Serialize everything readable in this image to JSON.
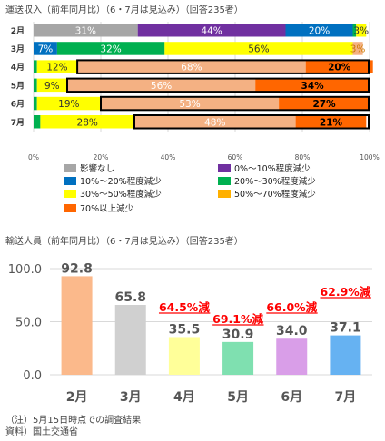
{
  "titles": {
    "top": "運送収入（前年同月比）（6・7月は見込み）（回答235者）",
    "bottom": "輸送人員（前年同月比）（6・7月は見込み）（回答235者）"
  },
  "notes": [
    "（注）5月15日時点での調査結果",
    "資料）国土交通省"
  ],
  "chart_data": [
    {
      "type": "bar",
      "orientation": "horizontal-stacked-100",
      "categories": [
        "2月",
        "3月",
        "4月",
        "5月",
        "6月",
        "7月"
      ],
      "series": [
        {
          "name": "影響なし",
          "color": "#a6a6a6",
          "values": [
            31,
            0,
            0,
            0,
            0,
            0
          ]
        },
        {
          "name": "0%～10%程度減少",
          "color": "#7030a0",
          "values": [
            44,
            0,
            0,
            0,
            0,
            0
          ]
        },
        {
          "name": "10%～20%程度減少",
          "color": "#0070c0",
          "values": [
            20,
            7,
            0,
            0,
            0,
            0
          ]
        },
        {
          "name": "20%～30%程度減少",
          "color": "#00b050",
          "values": [
            1,
            32,
            1,
            1,
            1,
            2
          ]
        },
        {
          "name": "30%～50%程度減少",
          "color": "#ffff00",
          "values": [
            3,
            56,
            12,
            9,
            19,
            28
          ]
        },
        {
          "name": "50%～70%程度減少",
          "color": "#f4b183",
          "values": [
            0,
            3,
            68,
            56,
            53,
            48
          ]
        },
        {
          "name": "70%以上減少",
          "color": "#ff6600",
          "values": [
            0,
            0,
            20,
            34,
            27,
            21
          ]
        }
      ],
      "labels": [
        [
          {
            "s": 0,
            "t": "31%",
            "c": "#ffffff"
          },
          {
            "s": 1,
            "t": "44%",
            "c": "#ffffff"
          },
          {
            "s": 2,
            "t": "20%",
            "c": "#ffffff"
          },
          {
            "s": 4,
            "t": "3%",
            "c": "#333333"
          }
        ],
        [
          {
            "s": 2,
            "t": "7%",
            "c": "#ffffff"
          },
          {
            "s": 3,
            "t": "32%",
            "c": "#ffffff"
          },
          {
            "s": 4,
            "t": "56%",
            "c": "#333333"
          },
          {
            "s": 5,
            "t": "3%",
            "c": "#cc7a00"
          }
        ],
        [
          {
            "s": 4,
            "t": "12%",
            "c": "#333333"
          },
          {
            "s": 5,
            "t": "68%",
            "c": "#ffffff"
          },
          {
            "s": 6,
            "t": "20%",
            "c": "#000000"
          }
        ],
        [
          {
            "s": 4,
            "t": "9%",
            "c": "#333333"
          },
          {
            "s": 5,
            "t": "56%",
            "c": "#ffffff"
          },
          {
            "s": 6,
            "t": "34%",
            "c": "#000000"
          }
        ],
        [
          {
            "s": 4,
            "t": "19%",
            "c": "#333333"
          },
          {
            "s": 5,
            "t": "53%",
            "c": "#ffffff"
          },
          {
            "s": 6,
            "t": "27%",
            "c": "#000000"
          }
        ],
        [
          {
            "s": 4,
            "t": "28%",
            "c": "#333333"
          },
          {
            "s": 5,
            "t": "48%",
            "c": "#ffffff"
          },
          {
            "s": 6,
            "t": "21%",
            "c": "#000000"
          }
        ]
      ],
      "highlighted_rows": [
        2,
        3,
        4,
        5
      ],
      "xlim": [
        0,
        100
      ],
      "x_ticks": [
        "0%",
        "20%",
        "40%",
        "60%",
        "80%",
        "100%"
      ],
      "legend": {
        "placement": "bottom",
        "items": [
          {
            "name": "影響なし",
            "color": "#a6a6a6"
          },
          {
            "name": "0%～10%程度減少",
            "color": "#7030a0"
          },
          {
            "name": "10%～20%程度減少",
            "color": "#0070c0"
          },
          {
            "name": "20%～30%程度減少",
            "color": "#00b050"
          },
          {
            "name": "30%～50%程度減少",
            "color": "#ffff00"
          },
          {
            "name": "50%～70%程度減少",
            "color": "#ffb000"
          },
          {
            "name": "70%以上減少",
            "color": "#ff6600"
          }
        ]
      }
    },
    {
      "type": "bar",
      "categories": [
        "2月",
        "3月",
        "4月",
        "5月",
        "6月",
        "7月"
      ],
      "values": [
        92.8,
        65.8,
        35.5,
        30.9,
        34.0,
        37.1
      ],
      "value_labels": [
        "92.8",
        "65.8",
        "35.5",
        "30.9",
        "34.0",
        "37.1"
      ],
      "colors": [
        "#fbb98b",
        "#d0d0d0",
        "#ffff99",
        "#7fe0b0",
        "#d99ee8",
        "#66b2f2"
      ],
      "annotations": [
        {
          "index": 2,
          "text": "64.5%減"
        },
        {
          "index": 3,
          "text": "69.1%減"
        },
        {
          "index": 4,
          "text": "66.0%減"
        },
        {
          "index": 5,
          "text": "62.9%減"
        }
      ],
      "annotation_color": "#ff0000",
      "ylim": [
        0,
        100
      ],
      "y_ticks": [
        "0.0",
        "50.0",
        "100.0"
      ],
      "grid": true
    }
  ]
}
